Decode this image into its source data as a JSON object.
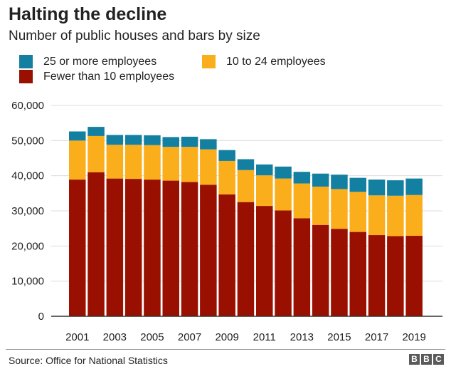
{
  "header": {
    "title": "Halting the decline",
    "subtitle": "Number of public houses and bars by size"
  },
  "legend": [
    {
      "label": "25 or more employees",
      "color": "#1380a1"
    },
    {
      "label": "10 to 24 employees",
      "color": "#fbae1b"
    },
    {
      "label": "Fewer than 10 employees",
      "color": "#990f00"
    }
  ],
  "chart_data": {
    "type": "bar",
    "stacked": true,
    "categories": [
      "2001",
      "2002",
      "2003",
      "2004",
      "2005",
      "2006",
      "2007",
      "2008",
      "2009",
      "2010",
      "2011",
      "2012",
      "2013",
      "2014",
      "2015",
      "2016",
      "2017",
      "2018",
      "2019"
    ],
    "x_tick_labels": [
      "2001",
      "2003",
      "2005",
      "2007",
      "2009",
      "2011",
      "2013",
      "2015",
      "2017",
      "2019"
    ],
    "series": [
      {
        "name": "Fewer than 10 employees",
        "color": "#990f00",
        "values": [
          38900,
          41000,
          39200,
          39100,
          38900,
          38600,
          38200,
          37400,
          34700,
          32500,
          31400,
          30100,
          27900,
          26000,
          24900,
          24000,
          23100,
          22800,
          22900
        ]
      },
      {
        "name": "10 to 24 employees",
        "color": "#fbae1b",
        "values": [
          11100,
          10300,
          9600,
          9700,
          9800,
          9600,
          10000,
          10100,
          9500,
          9100,
          8700,
          9100,
          9900,
          10900,
          11300,
          11400,
          11300,
          11500,
          11600
        ]
      },
      {
        "name": "25 or more employees",
        "color": "#1380a1",
        "values": [
          2600,
          2600,
          2800,
          2800,
          2800,
          2800,
          2900,
          2900,
          3100,
          3100,
          3100,
          3400,
          3300,
          3700,
          4100,
          4000,
          4500,
          4400,
          4700
        ]
      }
    ],
    "y_ticks": [
      0,
      10000,
      20000,
      30000,
      40000,
      50000,
      60000
    ],
    "y_tick_labels": [
      "0",
      "10,000",
      "20,000",
      "30,000",
      "40,000",
      "50,000",
      "60,000"
    ],
    "ylim": [
      0,
      60000
    ],
    "grid": true,
    "legend_position": "top-left"
  },
  "footer": {
    "source": "Source: Office for National Statistics",
    "logo": [
      "B",
      "B",
      "C"
    ]
  }
}
